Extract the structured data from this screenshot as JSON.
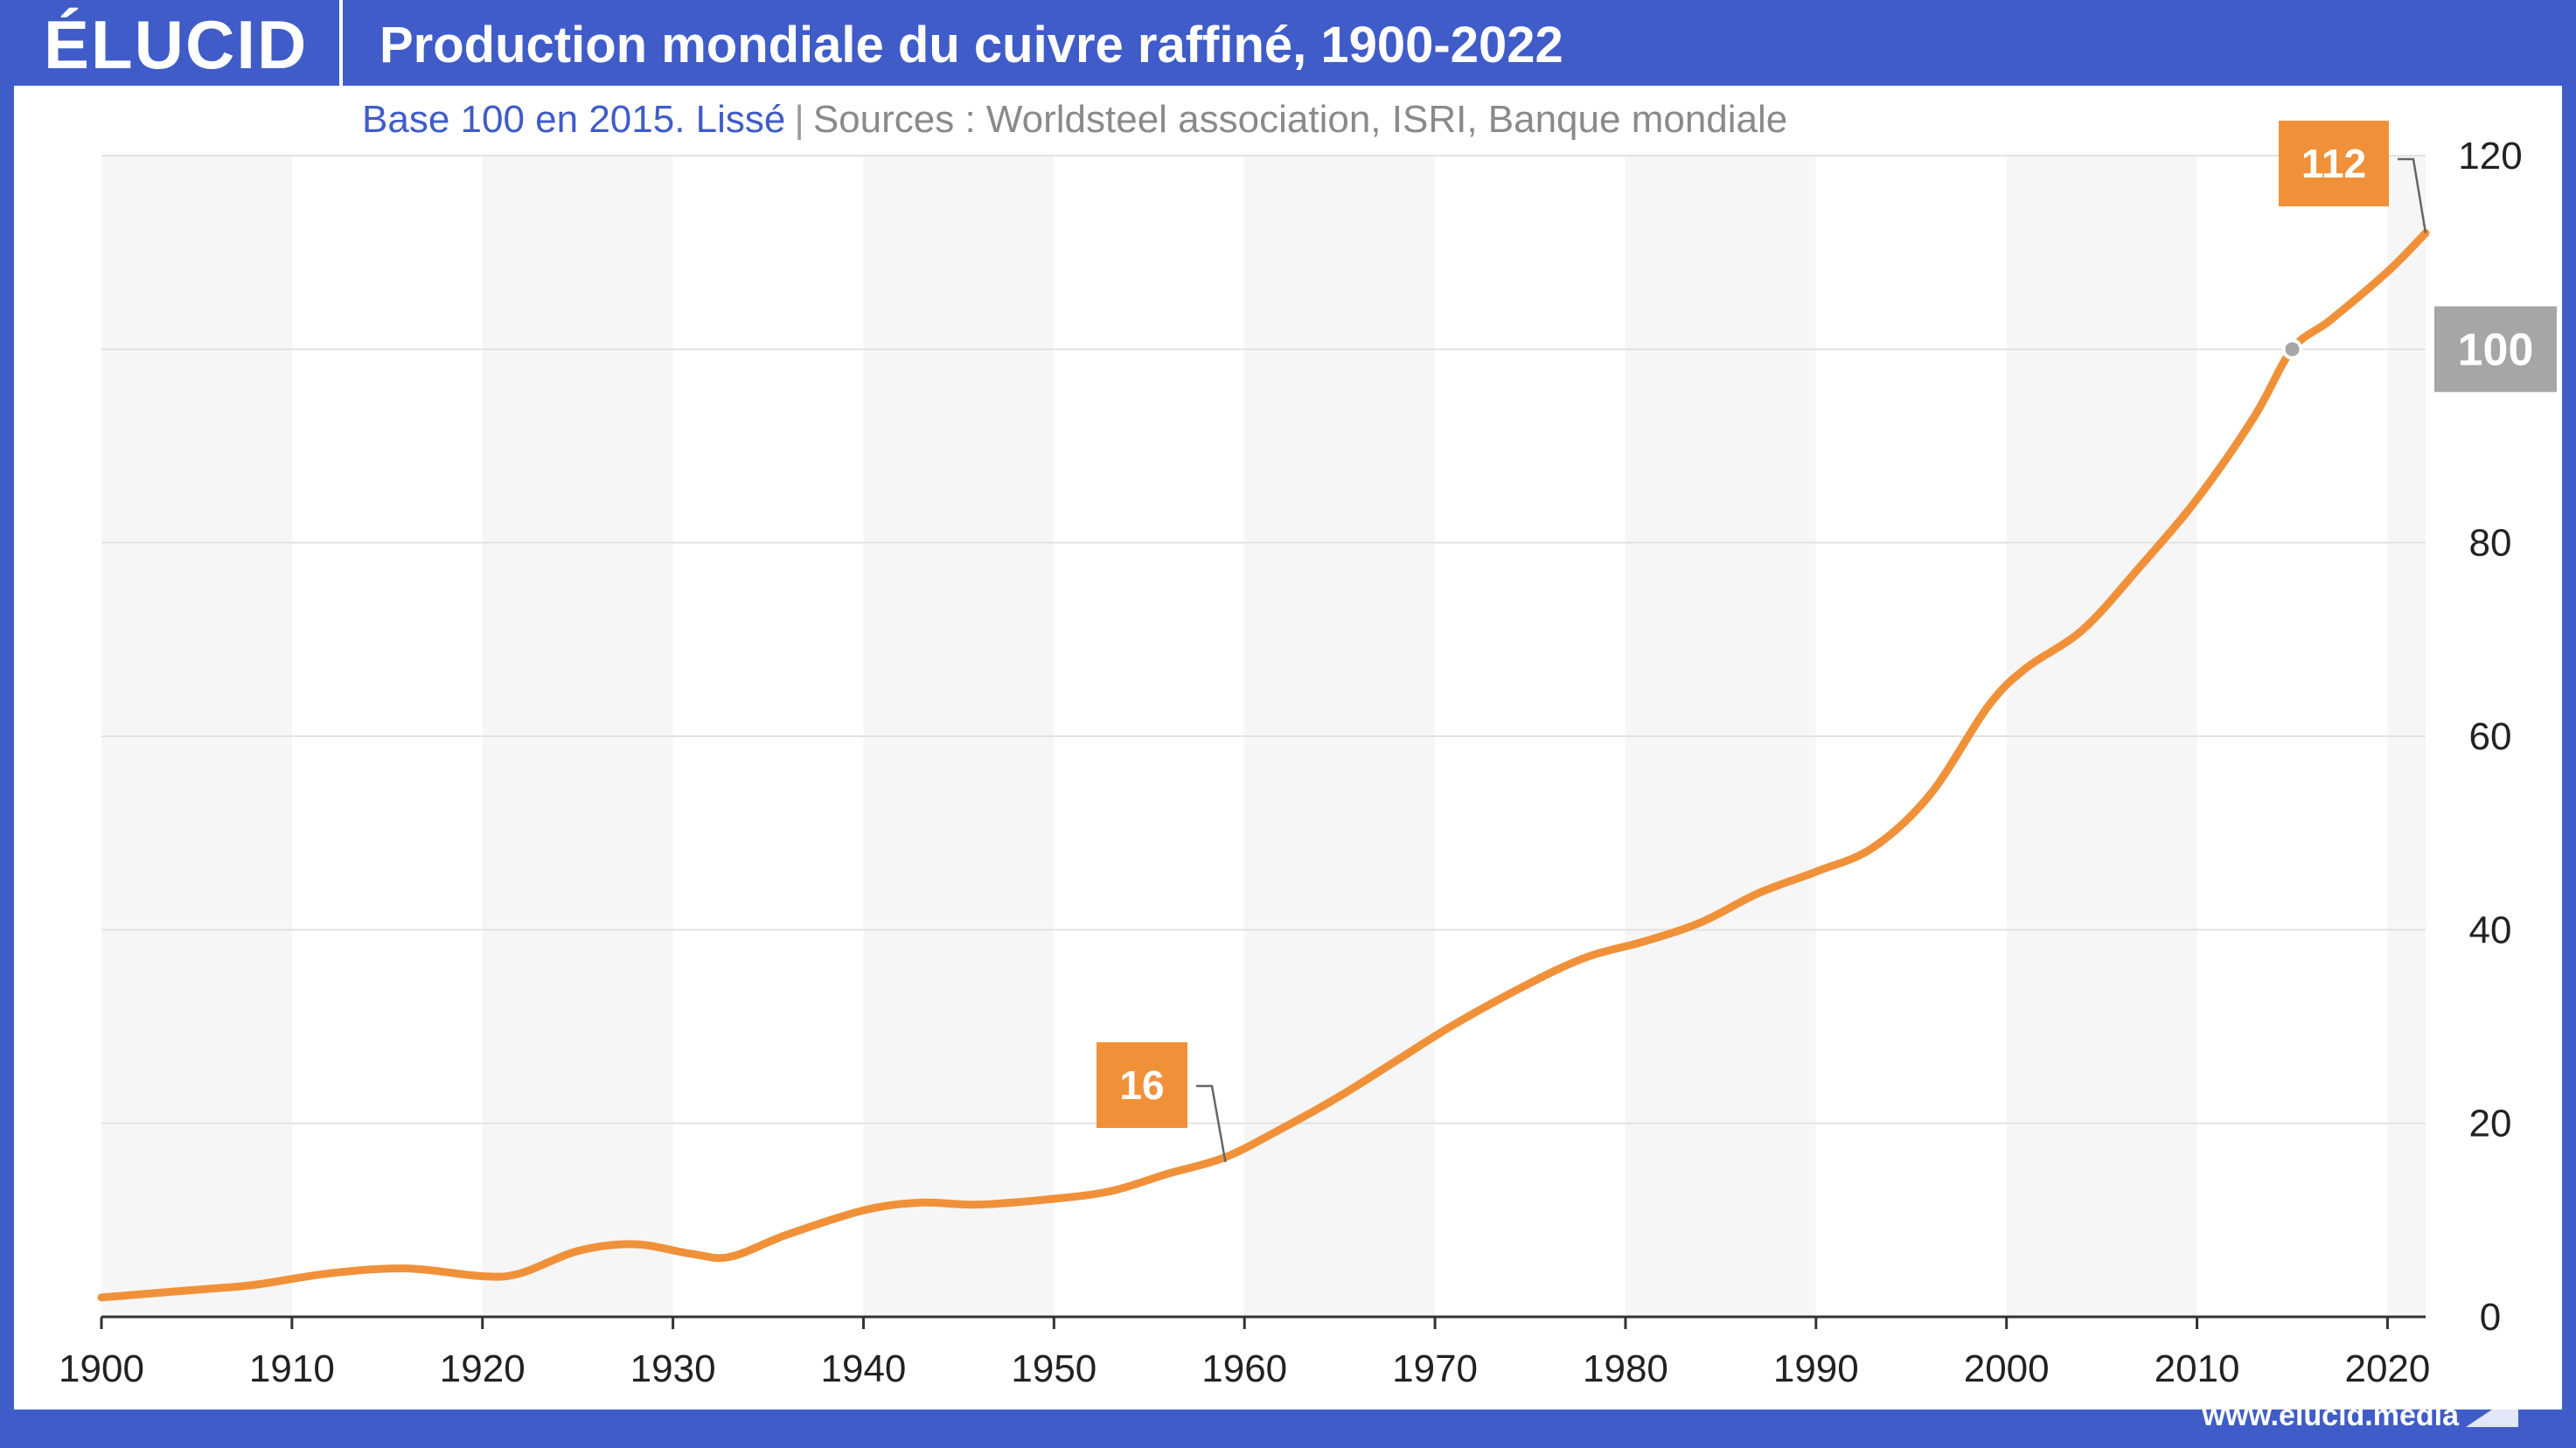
{
  "header": {
    "logo": "ÉLUCID",
    "title": "Production mondiale du cuivre raffiné, 1900-2022"
  },
  "subtitle": {
    "base": "Base 100 en 2015. Lissé",
    "separator": "|",
    "sources": "Sources : Worldsteel association, ISRI, Banque mondiale"
  },
  "footer": {
    "site": "www.elucid.media"
  },
  "colors": {
    "brand": "#3f5cc9",
    "line": "#f0913a",
    "callout": "#f0913a",
    "reference": "#a6a6a6",
    "band": "#f6f6f6",
    "grid": "#e2e2e2"
  },
  "chart_data": {
    "type": "line",
    "title": "Production mondiale du cuivre raffiné, 1900-2022",
    "xlim": [
      1900,
      2022
    ],
    "ylim": [
      0,
      120
    ],
    "x_ticks": [
      "1900",
      "1910",
      "1920",
      "1930",
      "1940",
      "1950",
      "1960",
      "1970",
      "1980",
      "1990",
      "2000",
      "2010",
      "2020"
    ],
    "y_ticks": [
      "0",
      "20",
      "40",
      "60",
      "80",
      "100",
      "120"
    ],
    "y_axis_side": "right",
    "grid": true,
    "alternating_decade_bands": true,
    "series": [
      {
        "x": [
          1900,
          1905,
          1908,
          1912,
          1916,
          1920,
          1922,
          1925,
          1928,
          1931,
          1933,
          1936,
          1940,
          1943,
          1946,
          1950,
          1953,
          1956,
          1959,
          1962,
          1965,
          1968,
          1971,
          1975,
          1978,
          1981,
          1984,
          1987,
          1990,
          1993,
          1996,
          1999,
          2001,
          2004,
          2007,
          2010,
          2013,
          2015,
          2017,
          2020,
          2022
        ],
        "y": [
          2,
          2.8,
          3.3,
          4.5,
          5,
          4.2,
          4.5,
          6.8,
          7.5,
          6.5,
          6.2,
          8.5,
          11,
          11.8,
          11.6,
          12.2,
          13,
          14.8,
          16.5,
          19.5,
          22.8,
          26.5,
          30.2,
          34.5,
          37.2,
          38.8,
          40.8,
          43.8,
          46,
          48.5,
          54,
          63,
          67,
          71,
          77.5,
          84.5,
          93,
          100,
          103,
          108,
          112
        ]
      }
    ],
    "annotations": [
      {
        "x": 1959,
        "y": 16,
        "label": "16",
        "style": "callout"
      },
      {
        "x": 2022,
        "y": 112,
        "label": "112",
        "style": "callout"
      },
      {
        "x": 2015,
        "y": 100,
        "label": "100",
        "style": "reference"
      }
    ]
  }
}
